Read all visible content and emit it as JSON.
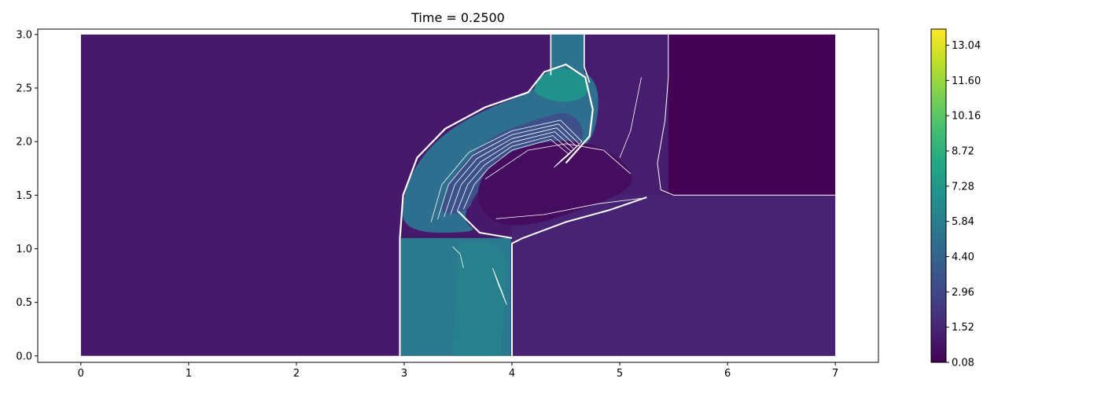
{
  "chart_data": {
    "type": "heatmap",
    "title": "Time = 0.2500",
    "xlabel": "",
    "ylabel": "",
    "xlim": [
      -0.4,
      7.4
    ],
    "ylim": [
      -0.06,
      3.05
    ],
    "xticks": [
      0,
      1,
      2,
      3,
      4,
      5,
      6,
      7
    ],
    "yticks": [
      0.0,
      0.5,
      1.0,
      1.5,
      2.0,
      2.5,
      3.0
    ],
    "xtick_labels": [
      "0",
      "1",
      "2",
      "3",
      "4",
      "5",
      "6",
      "7"
    ],
    "ytick_labels": [
      "0.0",
      "0.5",
      "1.0",
      "1.5",
      "2.0",
      "2.5",
      "3.0"
    ],
    "domain": {
      "x": [
        0,
        7
      ],
      "y": [
        0,
        3
      ]
    },
    "colormap": "viridis",
    "colorbar": {
      "vmin": 0.08,
      "vmax": 13.7,
      "ticks": [
        0.08,
        1.52,
        2.96,
        4.4,
        5.84,
        7.28,
        8.72,
        10.16,
        11.6,
        13.04
      ],
      "tick_labels": [
        "0.08",
        "1.52",
        "2.96",
        "4.40",
        "5.84",
        "7.28",
        "8.72",
        "10.16",
        "11.60",
        "13.04"
      ]
    },
    "contour_line_color": "#ffffff",
    "regions": [
      {
        "name": "background",
        "value": 1.0
      },
      {
        "name": "upper-right-block",
        "value": 0.125,
        "x": [
          5.45,
          7.0
        ],
        "y": [
          1.5,
          3.0
        ]
      },
      {
        "name": "lower-right-block",
        "value": 1.4,
        "x": [
          4.0,
          7.0
        ],
        "y": [
          0.0,
          1.5
        ]
      },
      {
        "name": "left-jet",
        "value": 5.6,
        "x": [
          2.97,
          3.99
        ],
        "y": [
          0.0,
          1.1
        ]
      },
      {
        "name": "top-jet",
        "value": 5.2,
        "x": [
          4.36,
          4.67
        ],
        "y": [
          2.6,
          3.0
        ]
      },
      {
        "name": "upper-right-mid",
        "value": 1.2,
        "x": [
          4.7,
          5.45
        ],
        "y": [
          1.5,
          3.0
        ]
      }
    ]
  }
}
